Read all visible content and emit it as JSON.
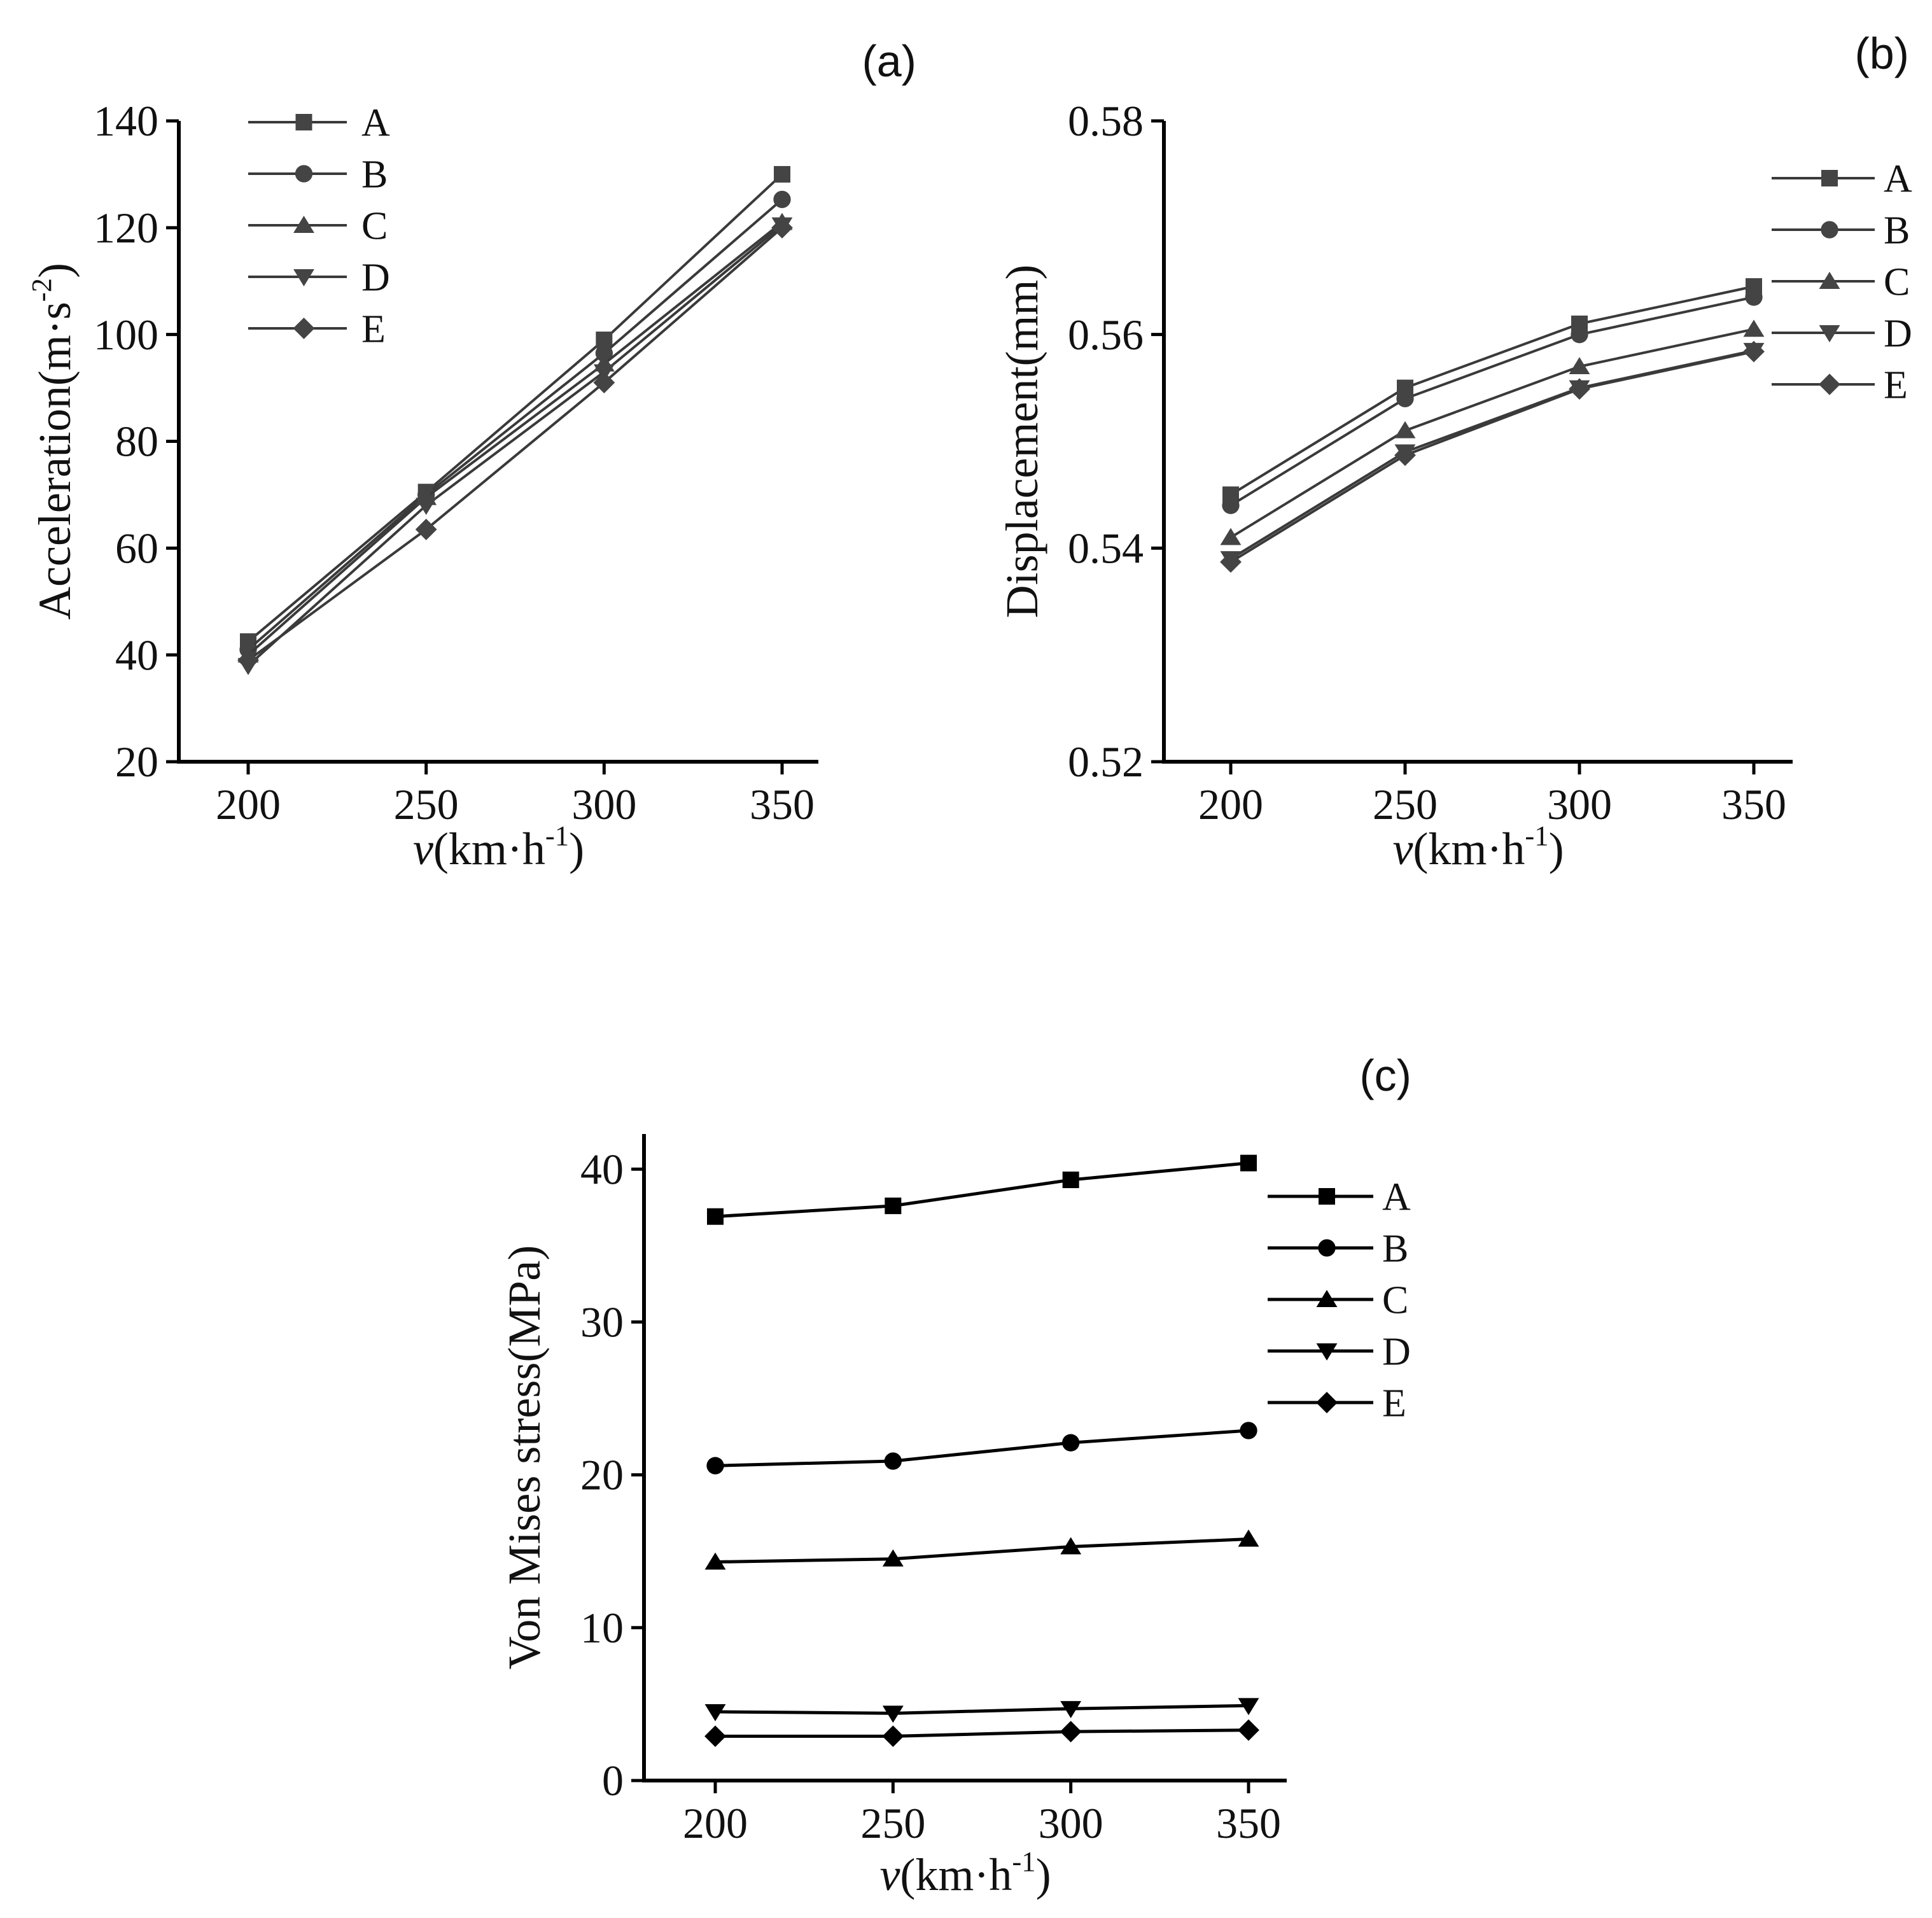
{
  "colors": {
    "background": "#ffffff",
    "panel_a_line": "#3a3a3a",
    "panel_a_marker": "#444444",
    "panel_b_line": "#3a3a3a",
    "panel_b_marker": "#444444",
    "panel_c_line": "#000000",
    "panel_c_marker": "#000000"
  },
  "chart_data": [
    {
      "type": "line",
      "panel_label": "(a)",
      "title": "",
      "xlabel": {
        "italic": "v",
        "text": "(km·h",
        "sup": "-1",
        "tail": ")"
      },
      "ylabel": {
        "text": "Acceleration(m·s",
        "sup": "-2",
        "tail": ")"
      },
      "x": [
        200,
        250,
        300,
        350
      ],
      "xticks": [
        200,
        250,
        300,
        350
      ],
      "xlim": [
        180,
        360
      ],
      "yticks": [
        20,
        40,
        60,
        80,
        100,
        120,
        140
      ],
      "ylim": [
        20,
        140
      ],
      "legend_position": "top-left",
      "series": [
        {
          "name": "A",
          "marker": "square",
          "values": [
            42.5,
            70.5,
            99.0,
            130.0
          ]
        },
        {
          "name": "B",
          "marker": "circle",
          "values": [
            41.0,
            70.0,
            96.5,
            125.3
          ]
        },
        {
          "name": "C",
          "marker": "triangle-up",
          "values": [
            40.0,
            69.5,
            94.5,
            121.0
          ]
        },
        {
          "name": "D",
          "marker": "triangle-down",
          "values": [
            38.0,
            68.0,
            93.0,
            120.5
          ]
        },
        {
          "name": "E",
          "marker": "diamond",
          "values": [
            39.0,
            63.5,
            91.0,
            120.0
          ]
        }
      ]
    },
    {
      "type": "line",
      "panel_label": "(b)",
      "title": "",
      "xlabel": {
        "italic": "v",
        "text": "(km·h",
        "sup": "-1",
        "tail": ")"
      },
      "ylabel": {
        "text": "Displacement(mm)",
        "sup": "",
        "tail": ""
      },
      "x": [
        200,
        250,
        300,
        350
      ],
      "xticks": [
        200,
        250,
        300,
        350
      ],
      "xlim": [
        180,
        360
      ],
      "yticks": [
        0.52,
        0.54,
        0.56,
        0.58
      ],
      "ytick_labels": [
        "0.52",
        "0.54",
        "0.56",
        "0.58"
      ],
      "ylim": [
        0.52,
        0.58
      ],
      "legend_position": "right",
      "series": [
        {
          "name": "A",
          "marker": "square",
          "values": [
            0.545,
            0.555,
            0.561,
            0.5645
          ]
        },
        {
          "name": "B",
          "marker": "circle",
          "values": [
            0.544,
            0.554,
            0.56,
            0.5635
          ]
        },
        {
          "name": "C",
          "marker": "triangle-up",
          "values": [
            0.541,
            0.551,
            0.557,
            0.5605
          ]
        },
        {
          "name": "D",
          "marker": "triangle-down",
          "values": [
            0.539,
            0.549,
            0.555,
            0.5585
          ]
        },
        {
          "name": "E",
          "marker": "diamond",
          "values": [
            0.5387,
            0.5487,
            0.5549,
            0.5584
          ]
        }
      ]
    },
    {
      "type": "line",
      "panel_label": "(c)",
      "title": "",
      "xlabel": {
        "italic": "v",
        "text": "(km·h",
        "sup": "-1",
        "tail": ")"
      },
      "ylabel": {
        "text": "Von Mises stress(MPa)",
        "sup": "",
        "tail": ""
      },
      "x": [
        200,
        250,
        300,
        350
      ],
      "xticks": [
        200,
        250,
        300,
        350
      ],
      "xlim": [
        180,
        360
      ],
      "yticks": [
        0,
        10,
        20,
        30,
        40
      ],
      "ylim": [
        0,
        42.3
      ],
      "legend_position": "right",
      "series": [
        {
          "name": "A",
          "marker": "square",
          "values": [
            36.9,
            37.6,
            39.3,
            40.4
          ]
        },
        {
          "name": "B",
          "marker": "circle",
          "values": [
            20.6,
            20.9,
            22.1,
            22.9
          ]
        },
        {
          "name": "C",
          "marker": "triangle-up",
          "values": [
            14.3,
            14.5,
            15.3,
            15.8
          ]
        },
        {
          "name": "D",
          "marker": "triangle-down",
          "values": [
            4.5,
            4.4,
            4.7,
            4.9
          ]
        },
        {
          "name": "E",
          "marker": "diamond",
          "values": [
            2.9,
            2.9,
            3.2,
            3.3
          ]
        }
      ]
    }
  ]
}
